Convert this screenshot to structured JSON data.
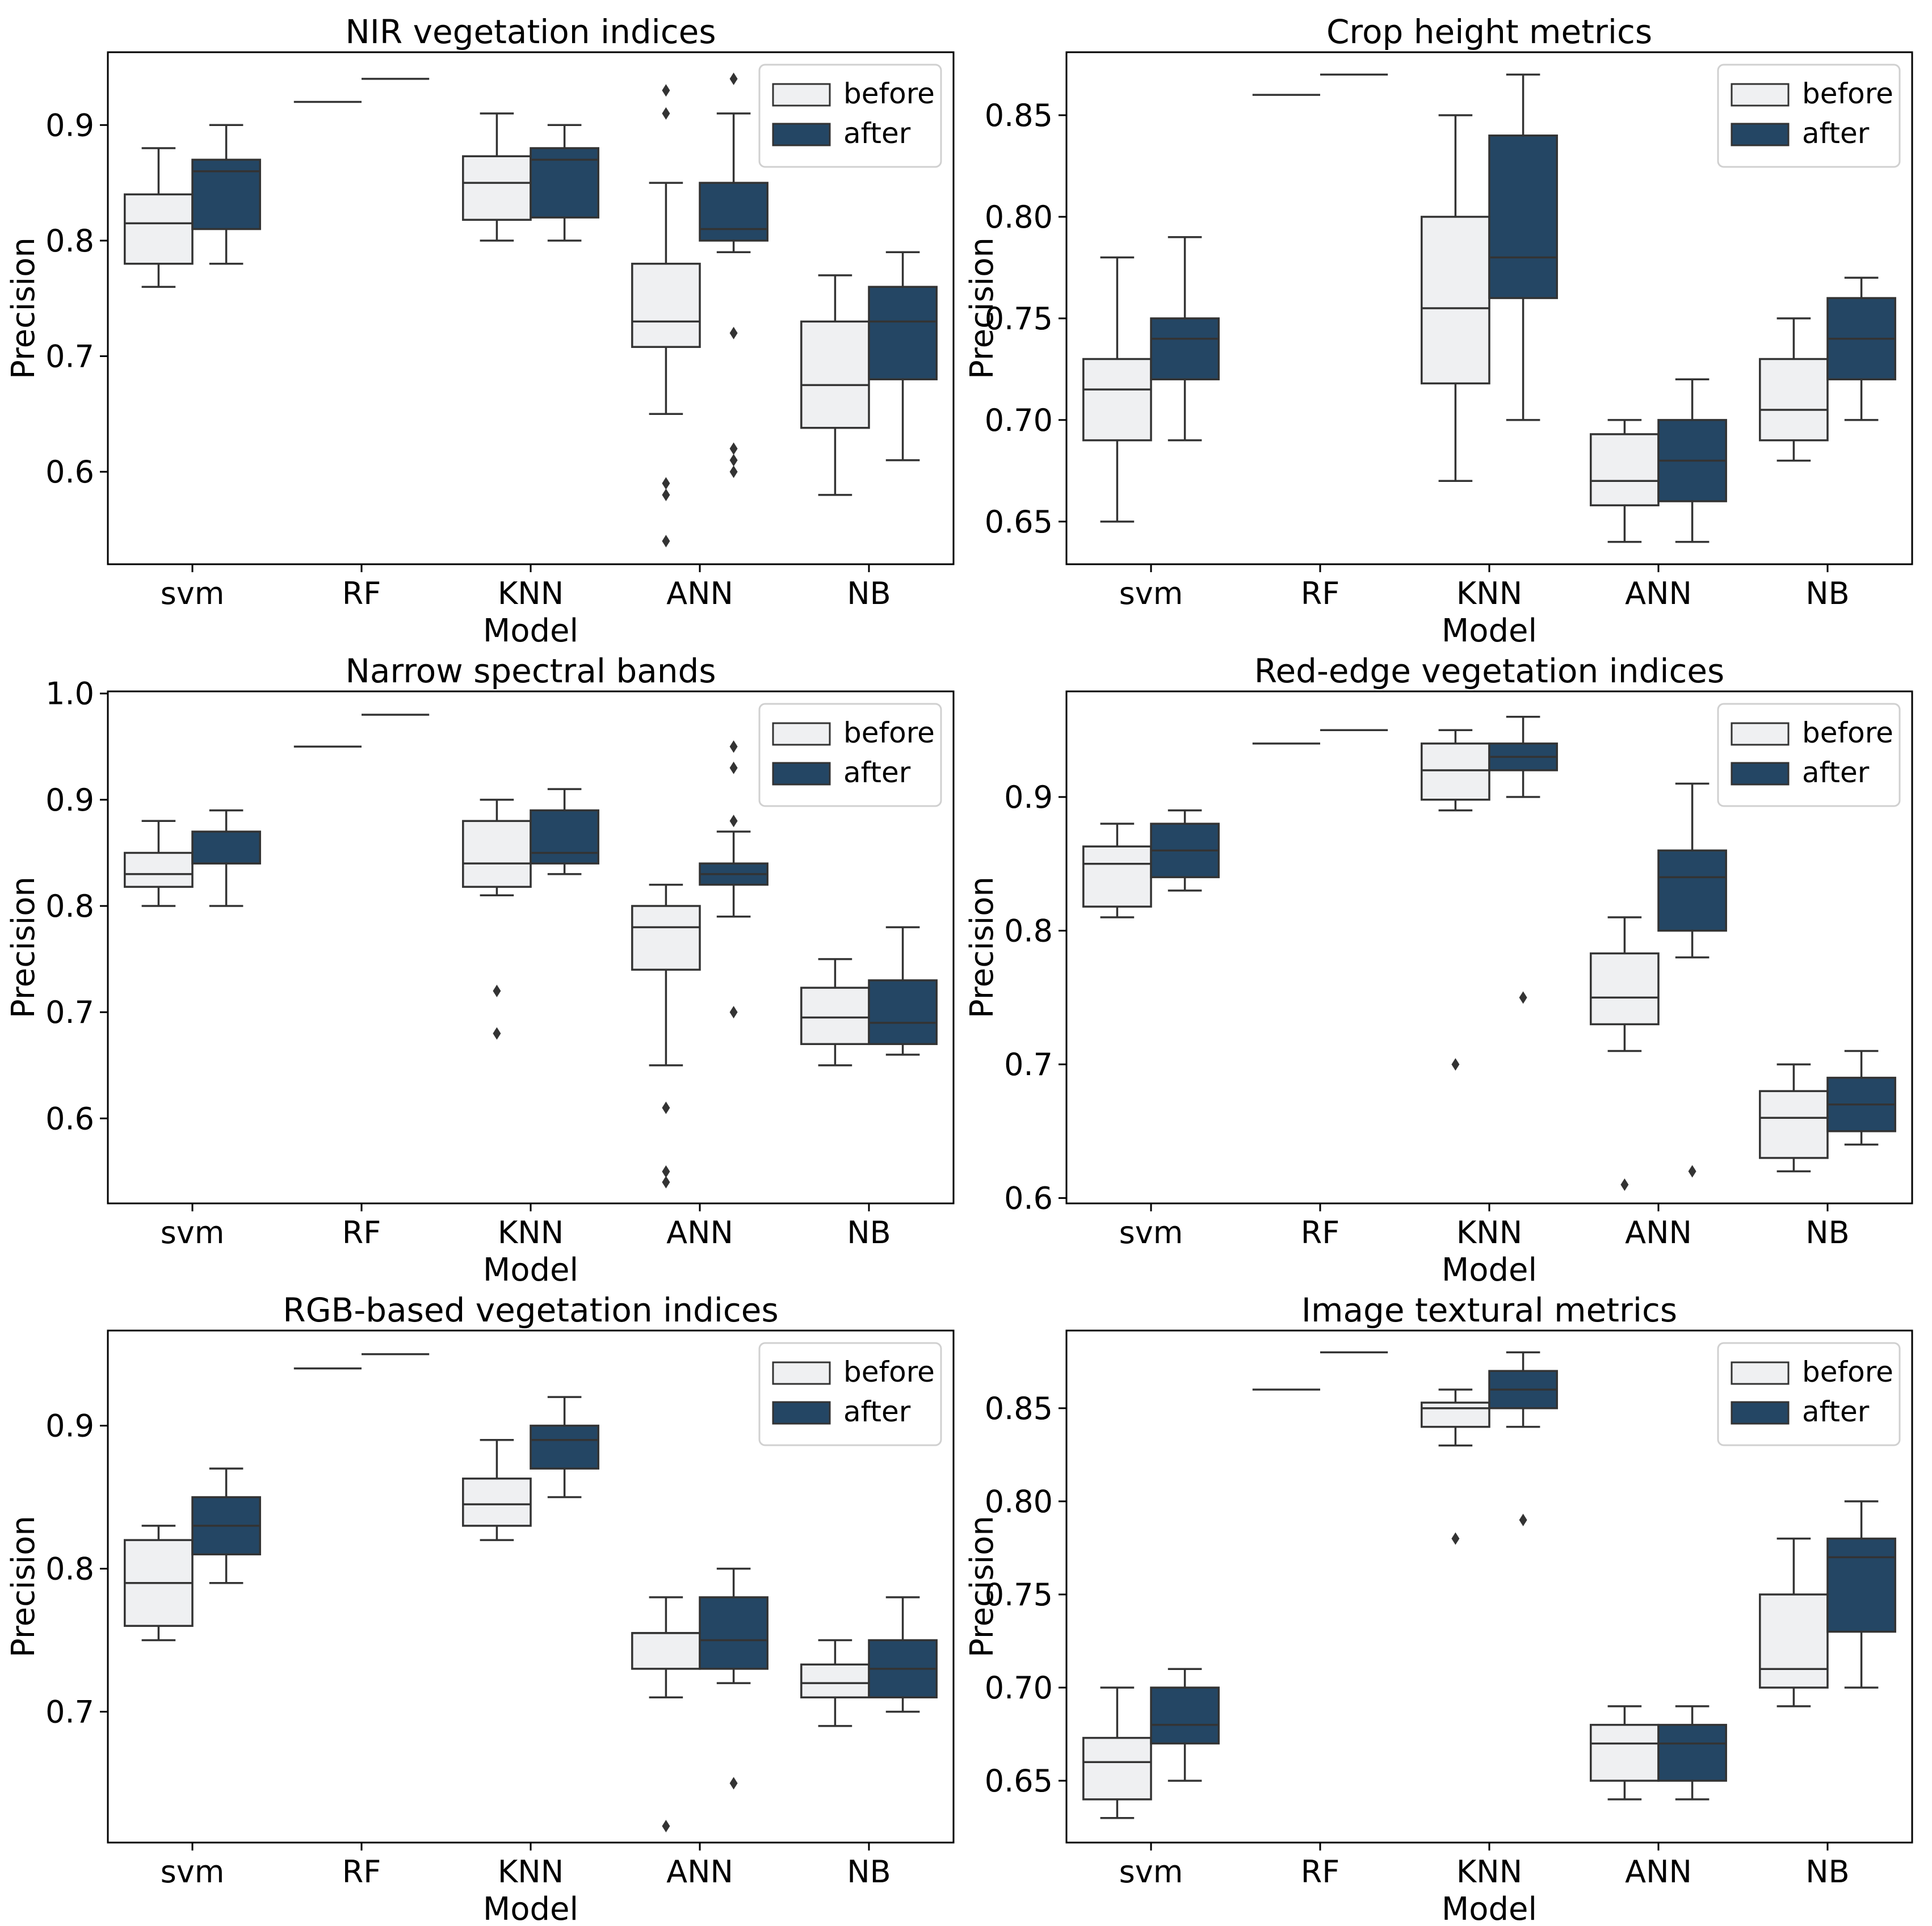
{
  "colors": {
    "before": "#eff0f2",
    "after": "#244664",
    "line": "#333333",
    "axis": "#000000"
  },
  "chart_data": [
    {
      "type": "box",
      "title": "NIR vegetation indices",
      "xlabel": "Model",
      "ylabel": "Precision",
      "categories": [
        "svm",
        "RF",
        "KNN",
        "ANN",
        "NB"
      ],
      "ylim": [
        0.52,
        0.963
      ],
      "yticks": [
        0.6,
        0.7,
        0.8,
        0.9
      ],
      "ytick_labels": [
        "0.6",
        "0.7",
        "0.8",
        "0.9"
      ],
      "legend": [
        "before",
        "after"
      ],
      "legend_position": "top-right",
      "series": [
        {
          "name": "before",
          "boxes": [
            {
              "whislo": 0.76,
              "q1": 0.78,
              "med": 0.815,
              "q3": 0.84,
              "whishi": 0.88,
              "fliers": []
            },
            {
              "whislo": 0.92,
              "q1": 0.92,
              "med": 0.92,
              "q3": 0.92,
              "whishi": 0.92,
              "fliers": []
            },
            {
              "whislo": 0.8,
              "q1": 0.818,
              "med": 0.85,
              "q3": 0.873,
              "whishi": 0.91,
              "fliers": []
            },
            {
              "whislo": 0.65,
              "q1": 0.708,
              "med": 0.73,
              "q3": 0.78,
              "whishi": 0.85,
              "fliers": [
                0.93,
                0.91,
                0.59,
                0.58,
                0.54
              ]
            },
            {
              "whislo": 0.58,
              "q1": 0.638,
              "med": 0.675,
              "q3": 0.73,
              "whishi": 0.77,
              "fliers": []
            }
          ]
        },
        {
          "name": "after",
          "boxes": [
            {
              "whislo": 0.78,
              "q1": 0.81,
              "med": 0.86,
              "q3": 0.87,
              "whishi": 0.9,
              "fliers": []
            },
            {
              "whislo": 0.94,
              "q1": 0.94,
              "med": 0.94,
              "q3": 0.94,
              "whishi": 0.94,
              "fliers": []
            },
            {
              "whislo": 0.8,
              "q1": 0.82,
              "med": 0.87,
              "q3": 0.88,
              "whishi": 0.9,
              "fliers": []
            },
            {
              "whislo": 0.79,
              "q1": 0.8,
              "med": 0.81,
              "q3": 0.85,
              "whishi": 0.91,
              "fliers": [
                0.94,
                0.72,
                0.62,
                0.61,
                0.6
              ]
            },
            {
              "whislo": 0.61,
              "q1": 0.68,
              "med": 0.73,
              "q3": 0.76,
              "whishi": 0.79,
              "fliers": []
            }
          ]
        }
      ]
    },
    {
      "type": "box",
      "title": "Crop height metrics",
      "xlabel": "Model",
      "ylabel": "Precision",
      "categories": [
        "svm",
        "RF",
        "KNN",
        "ANN",
        "NB"
      ],
      "ylim": [
        0.629,
        0.881
      ],
      "yticks": [
        0.65,
        0.7,
        0.75,
        0.8,
        0.85
      ],
      "ytick_labels": [
        "0.65",
        "0.70",
        "0.75",
        "0.80",
        "0.85"
      ],
      "legend": [
        "before",
        "after"
      ],
      "legend_position": "top-right",
      "series": [
        {
          "name": "before",
          "boxes": [
            {
              "whislo": 0.65,
              "q1": 0.69,
              "med": 0.715,
              "q3": 0.73,
              "whishi": 0.78,
              "fliers": []
            },
            {
              "whislo": 0.86,
              "q1": 0.86,
              "med": 0.86,
              "q3": 0.86,
              "whishi": 0.86,
              "fliers": []
            },
            {
              "whislo": 0.67,
              "q1": 0.718,
              "med": 0.755,
              "q3": 0.8,
              "whishi": 0.85,
              "fliers": []
            },
            {
              "whislo": 0.64,
              "q1": 0.658,
              "med": 0.67,
              "q3": 0.693,
              "whishi": 0.7,
              "fliers": []
            },
            {
              "whislo": 0.68,
              "q1": 0.69,
              "med": 0.705,
              "q3": 0.73,
              "whishi": 0.75,
              "fliers": []
            }
          ]
        },
        {
          "name": "after",
          "boxes": [
            {
              "whislo": 0.69,
              "q1": 0.72,
              "med": 0.74,
              "q3": 0.75,
              "whishi": 0.79,
              "fliers": []
            },
            {
              "whislo": 0.87,
              "q1": 0.87,
              "med": 0.87,
              "q3": 0.87,
              "whishi": 0.87,
              "fliers": []
            },
            {
              "whislo": 0.7,
              "q1": 0.76,
              "med": 0.78,
              "q3": 0.84,
              "whishi": 0.87,
              "fliers": []
            },
            {
              "whislo": 0.64,
              "q1": 0.66,
              "med": 0.68,
              "q3": 0.7,
              "whishi": 0.72,
              "fliers": []
            },
            {
              "whislo": 0.7,
              "q1": 0.72,
              "med": 0.74,
              "q3": 0.76,
              "whishi": 0.77,
              "fliers": []
            }
          ]
        }
      ]
    },
    {
      "type": "box",
      "title": "Narrow spectral bands",
      "xlabel": "Model",
      "ylabel": "Precision",
      "categories": [
        "svm",
        "RF",
        "KNN",
        "ANN",
        "NB"
      ],
      "ylim": [
        0.52,
        1.002
      ],
      "yticks": [
        0.6,
        0.7,
        0.8,
        0.9,
        1.0
      ],
      "ytick_labels": [
        "0.6",
        "0.7",
        "0.8",
        "0.9",
        "1.0"
      ],
      "legend": [
        "before",
        "after"
      ],
      "legend_position": "top-right",
      "series": [
        {
          "name": "before",
          "boxes": [
            {
              "whislo": 0.8,
              "q1": 0.818,
              "med": 0.83,
              "q3": 0.85,
              "whishi": 0.88,
              "fliers": []
            },
            {
              "whislo": 0.95,
              "q1": 0.95,
              "med": 0.95,
              "q3": 0.95,
              "whishi": 0.95,
              "fliers": []
            },
            {
              "whislo": 0.81,
              "q1": 0.818,
              "med": 0.84,
              "q3": 0.88,
              "whishi": 0.9,
              "fliers": [
                0.72,
                0.68
              ]
            },
            {
              "whislo": 0.65,
              "q1": 0.74,
              "med": 0.78,
              "q3": 0.8,
              "whishi": 0.82,
              "fliers": [
                0.61,
                0.55,
                0.54
              ]
            },
            {
              "whislo": 0.65,
              "q1": 0.67,
              "med": 0.695,
              "q3": 0.723,
              "whishi": 0.75,
              "fliers": []
            }
          ]
        },
        {
          "name": "after",
          "boxes": [
            {
              "whislo": 0.8,
              "q1": 0.84,
              "med": 0.84,
              "q3": 0.87,
              "whishi": 0.89,
              "fliers": []
            },
            {
              "whislo": 0.98,
              "q1": 0.98,
              "med": 0.98,
              "q3": 0.98,
              "whishi": 0.98,
              "fliers": []
            },
            {
              "whislo": 0.83,
              "q1": 0.84,
              "med": 0.85,
              "q3": 0.89,
              "whishi": 0.91,
              "fliers": []
            },
            {
              "whislo": 0.79,
              "q1": 0.82,
              "med": 0.83,
              "q3": 0.84,
              "whishi": 0.87,
              "fliers": [
                0.95,
                0.93,
                0.88,
                0.7
              ]
            },
            {
              "whislo": 0.66,
              "q1": 0.67,
              "med": 0.69,
              "q3": 0.73,
              "whishi": 0.78,
              "fliers": []
            }
          ]
        }
      ]
    },
    {
      "type": "box",
      "title": "Red-edge vegetation indices",
      "xlabel": "Model",
      "ylabel": "Precision",
      "categories": [
        "svm",
        "RF",
        "KNN",
        "ANN",
        "NB"
      ],
      "ylim": [
        0.596,
        0.979
      ],
      "yticks": [
        0.6,
        0.7,
        0.8,
        0.9
      ],
      "ytick_labels": [
        "0.6",
        "0.7",
        "0.8",
        "0.9"
      ],
      "legend": [
        "before",
        "after"
      ],
      "legend_position": "top-right",
      "series": [
        {
          "name": "before",
          "boxes": [
            {
              "whislo": 0.81,
              "q1": 0.818,
              "med": 0.85,
              "q3": 0.863,
              "whishi": 0.88,
              "fliers": []
            },
            {
              "whislo": 0.94,
              "q1": 0.94,
              "med": 0.94,
              "q3": 0.94,
              "whishi": 0.94,
              "fliers": []
            },
            {
              "whislo": 0.89,
              "q1": 0.898,
              "med": 0.92,
              "q3": 0.94,
              "whishi": 0.95,
              "fliers": [
                0.7
              ]
            },
            {
              "whislo": 0.71,
              "q1": 0.73,
              "med": 0.75,
              "q3": 0.783,
              "whishi": 0.81,
              "fliers": [
                0.61
              ]
            },
            {
              "whislo": 0.62,
              "q1": 0.63,
              "med": 0.66,
              "q3": 0.68,
              "whishi": 0.7,
              "fliers": []
            }
          ]
        },
        {
          "name": "after",
          "boxes": [
            {
              "whislo": 0.83,
              "q1": 0.84,
              "med": 0.86,
              "q3": 0.88,
              "whishi": 0.89,
              "fliers": []
            },
            {
              "whislo": 0.95,
              "q1": 0.95,
              "med": 0.95,
              "q3": 0.95,
              "whishi": 0.95,
              "fliers": []
            },
            {
              "whislo": 0.9,
              "q1": 0.92,
              "med": 0.93,
              "q3": 0.94,
              "whishi": 0.96,
              "fliers": [
                0.75
              ]
            },
            {
              "whislo": 0.78,
              "q1": 0.8,
              "med": 0.84,
              "q3": 0.86,
              "whishi": 0.91,
              "fliers": [
                0.62
              ]
            },
            {
              "whislo": 0.64,
              "q1": 0.65,
              "med": 0.67,
              "q3": 0.69,
              "whishi": 0.71,
              "fliers": []
            }
          ]
        }
      ]
    },
    {
      "type": "box",
      "title": "RGB-based vegetation indices",
      "xlabel": "Model",
      "ylabel": "Precision",
      "categories": [
        "svm",
        "RF",
        "KNN",
        "ANN",
        "NB"
      ],
      "ylim": [
        0.6085,
        0.9665
      ],
      "yticks": [
        0.7,
        0.8,
        0.9
      ],
      "ytick_labels": [
        "0.7",
        "0.8",
        "0.9"
      ],
      "legend": [
        "before",
        "after"
      ],
      "legend_position": "top-right",
      "series": [
        {
          "name": "before",
          "boxes": [
            {
              "whislo": 0.75,
              "q1": 0.76,
              "med": 0.79,
              "q3": 0.82,
              "whishi": 0.83,
              "fliers": []
            },
            {
              "whislo": 0.94,
              "q1": 0.94,
              "med": 0.94,
              "q3": 0.94,
              "whishi": 0.94,
              "fliers": []
            },
            {
              "whislo": 0.82,
              "q1": 0.83,
              "med": 0.845,
              "q3": 0.863,
              "whishi": 0.89,
              "fliers": []
            },
            {
              "whislo": 0.71,
              "q1": 0.73,
              "med": 0.755,
              "q3": 0.755,
              "whishi": 0.78,
              "fliers": [
                0.62
              ]
            },
            {
              "whislo": 0.69,
              "q1": 0.71,
              "med": 0.72,
              "q3": 0.733,
              "whishi": 0.75,
              "fliers": []
            }
          ]
        },
        {
          "name": "after",
          "boxes": [
            {
              "whislo": 0.79,
              "q1": 0.81,
              "med": 0.83,
              "q3": 0.85,
              "whishi": 0.87,
              "fliers": []
            },
            {
              "whislo": 0.95,
              "q1": 0.95,
              "med": 0.95,
              "q3": 0.95,
              "whishi": 0.95,
              "fliers": []
            },
            {
              "whislo": 0.85,
              "q1": 0.87,
              "med": 0.89,
              "q3": 0.9,
              "whishi": 0.92,
              "fliers": []
            },
            {
              "whislo": 0.72,
              "q1": 0.73,
              "med": 0.75,
              "q3": 0.78,
              "whishi": 0.8,
              "fliers": [
                0.65
              ]
            },
            {
              "whislo": 0.7,
              "q1": 0.71,
              "med": 0.73,
              "q3": 0.75,
              "whishi": 0.78,
              "fliers": []
            }
          ]
        }
      ]
    },
    {
      "type": "box",
      "title": "Image textural metrics",
      "xlabel": "Model",
      "ylabel": "Precision",
      "categories": [
        "svm",
        "RF",
        "KNN",
        "ANN",
        "NB"
      ],
      "ylim": [
        0.6168,
        0.8917
      ],
      "yticks": [
        0.65,
        0.7,
        0.75,
        0.8,
        0.85
      ],
      "ytick_labels": [
        "0.65",
        "0.70",
        "0.75",
        "0.80",
        "0.85"
      ],
      "legend": [
        "before",
        "after"
      ],
      "legend_position": "top-right",
      "series": [
        {
          "name": "before",
          "boxes": [
            {
              "whislo": 0.63,
              "q1": 0.64,
              "med": 0.66,
              "q3": 0.673,
              "whishi": 0.7,
              "fliers": []
            },
            {
              "whislo": 0.86,
              "q1": 0.86,
              "med": 0.86,
              "q3": 0.86,
              "whishi": 0.86,
              "fliers": []
            },
            {
              "whislo": 0.83,
              "q1": 0.84,
              "med": 0.85,
              "q3": 0.853,
              "whishi": 0.86,
              "fliers": [
                0.78
              ]
            },
            {
              "whislo": 0.64,
              "q1": 0.65,
              "med": 0.67,
              "q3": 0.68,
              "whishi": 0.69,
              "fliers": []
            },
            {
              "whislo": 0.69,
              "q1": 0.7,
              "med": 0.71,
              "q3": 0.75,
              "whishi": 0.78,
              "fliers": []
            }
          ]
        },
        {
          "name": "after",
          "boxes": [
            {
              "whislo": 0.65,
              "q1": 0.67,
              "med": 0.68,
              "q3": 0.7,
              "whishi": 0.71,
              "fliers": []
            },
            {
              "whislo": 0.88,
              "q1": 0.88,
              "med": 0.88,
              "q3": 0.88,
              "whishi": 0.88,
              "fliers": []
            },
            {
              "whislo": 0.84,
              "q1": 0.85,
              "med": 0.86,
              "q3": 0.87,
              "whishi": 0.88,
              "fliers": [
                0.79
              ]
            },
            {
              "whislo": 0.64,
              "q1": 0.65,
              "med": 0.67,
              "q3": 0.68,
              "whishi": 0.69,
              "fliers": []
            },
            {
              "whislo": 0.7,
              "q1": 0.73,
              "med": 0.77,
              "q3": 0.78,
              "whishi": 0.8,
              "fliers": []
            }
          ]
        }
      ]
    }
  ]
}
